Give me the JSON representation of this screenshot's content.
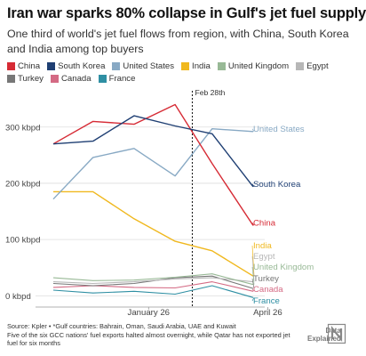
{
  "header": {
    "title": "Iran war sparks 80% collapse in Gulf's jet fuel supply",
    "subtitle": "One third of world's jet fuel flows from region, with China, South Korea and India among top buyers"
  },
  "footer": {
    "source_line1": "Source: Kpler • *Gulf countries: Bahrain, Oman, Saudi Arabia, UAE and Kuwait",
    "source_line2": "Five of the six GCC nations' fuel exports halted almost overnight, while Qatar has not exported jet fuel for six months",
    "logo_line1": "Data",
    "logo_line2": "Explained"
  },
  "chart_data": {
    "type": "line",
    "unit": "kbpd",
    "x": [
      "2025-11-15",
      "2025-12-01",
      "2025-12-15",
      "2026-01-01",
      "2026-01-15",
      "2026-02-01",
      "2026-02-15",
      "2026-03-01",
      "2026-03-15",
      "2026-04-01",
      "2026-04-15"
    ],
    "x_ticks": [
      {
        "value": "2026-01-26",
        "label": "January 26"
      },
      {
        "value": "2026-04-26",
        "label": "April 26"
      }
    ],
    "ylim": [
      -20,
      355
    ],
    "y_ticks": [
      {
        "value": 0,
        "label": "0 kbpd"
      },
      {
        "value": 100,
        "label": "100 kbpd"
      },
      {
        "value": 200,
        "label": "200 kbpd"
      },
      {
        "value": 300,
        "label": "300 kbpd"
      }
    ],
    "annotation": {
      "x": "2026-02-28",
      "label": "Feb 28th"
    },
    "series": [
      {
        "name": "China",
        "color": "#d62b35",
        "values": [
          270,
          null,
          310,
          null,
          305,
          null,
          340,
          null,
          235,
          null,
          125
        ]
      },
      {
        "name": "South Korea",
        "color": "#1f3f73",
        "values": [
          270,
          null,
          275,
          null,
          320,
          null,
          302,
          null,
          288,
          null,
          194
        ]
      },
      {
        "name": "United States",
        "color": "#88a9c4",
        "values": [
          172,
          null,
          246,
          null,
          262,
          null,
          213,
          null,
          297,
          null,
          292
        ]
      },
      {
        "name": "India",
        "color": "#f0b81e",
        "values": [
          185,
          null,
          185,
          null,
          137,
          null,
          97,
          null,
          80,
          null,
          35
        ]
      },
      {
        "name": "United Kingdom",
        "color": "#98b996",
        "values": [
          32,
          null,
          27,
          null,
          28,
          null,
          33,
          null,
          39,
          null,
          20
        ]
      },
      {
        "name": "Egypt",
        "color": "#b7b7b7",
        "values": [
          25,
          null,
          22,
          null,
          25,
          null,
          30,
          null,
          32,
          null,
          25
        ]
      },
      {
        "name": "Turkey",
        "color": "#777777",
        "values": [
          22,
          null,
          18,
          null,
          22,
          null,
          32,
          null,
          35,
          null,
          13
        ]
      },
      {
        "name": "Canada",
        "color": "#d46a84",
        "values": [
          15,
          null,
          18,
          null,
          15,
          null,
          14,
          null,
          25,
          null,
          8
        ]
      },
      {
        "name": "France",
        "color": "#2e8fa3",
        "values": [
          10,
          null,
          5,
          null,
          8,
          null,
          3,
          null,
          18,
          null,
          -3
        ]
      }
    ],
    "end_labels": [
      {
        "series": "United States",
        "label": "United States"
      },
      {
        "series": "South Korea",
        "label": "South Korea"
      },
      {
        "series": "China",
        "label": "China"
      },
      {
        "series": "India",
        "label": "India"
      },
      {
        "series": "Egypt",
        "label": "Egypt"
      },
      {
        "series": "United Kingdom",
        "label": "United Kingdom"
      },
      {
        "series": "Turkey",
        "label": "Turkey"
      },
      {
        "series": "Canada",
        "label": "Canada"
      },
      {
        "series": "France",
        "label": "France"
      }
    ]
  }
}
